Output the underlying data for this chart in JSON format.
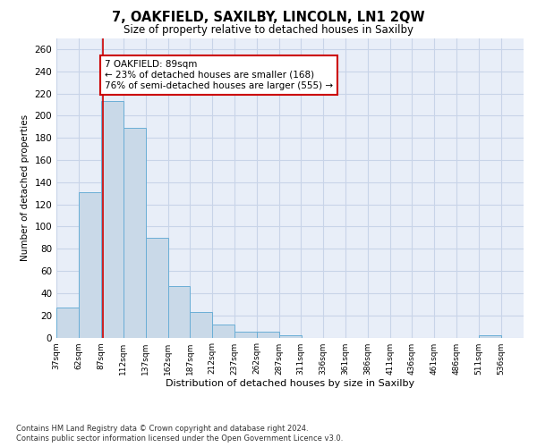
{
  "title": "7, OAKFIELD, SAXILBY, LINCOLN, LN1 2QW",
  "subtitle": "Size of property relative to detached houses in Saxilby",
  "xlabel": "Distribution of detached houses by size in Saxilby",
  "ylabel": "Number of detached properties",
  "bar_color": "#c9d9e8",
  "bar_edge_color": "#6aaed6",
  "grid_color": "#c8d4e8",
  "background_color": "#e8eef8",
  "annotation_text": "7 OAKFIELD: 89sqm\n← 23% of detached houses are smaller (168)\n76% of semi-detached houses are larger (555) →",
  "property_line_x": 89,
  "categories": [
    "37sqm",
    "62sqm",
    "87sqm",
    "112sqm",
    "137sqm",
    "162sqm",
    "187sqm",
    "212sqm",
    "237sqm",
    "262sqm",
    "287sqm",
    "311sqm",
    "336sqm",
    "361sqm",
    "386sqm",
    "411sqm",
    "436sqm",
    "461sqm",
    "486sqm",
    "511sqm",
    "536sqm"
  ],
  "bin_edges": [
    37,
    62,
    87,
    112,
    137,
    162,
    187,
    212,
    237,
    262,
    287,
    311,
    336,
    361,
    386,
    411,
    436,
    461,
    486,
    511,
    536,
    561
  ],
  "values": [
    27,
    131,
    213,
    189,
    90,
    46,
    23,
    12,
    5,
    5,
    2,
    0,
    0,
    0,
    0,
    0,
    0,
    0,
    0,
    2,
    0
  ],
  "ylim": [
    0,
    270
  ],
  "yticks": [
    0,
    20,
    40,
    60,
    80,
    100,
    120,
    140,
    160,
    180,
    200,
    220,
    240,
    260
  ],
  "footer1": "Contains HM Land Registry data © Crown copyright and database right 2024.",
  "footer2": "Contains public sector information licensed under the Open Government Licence v3.0.",
  "red_line_color": "#cc0000",
  "box_color": "#cc0000",
  "title_fontsize": 10.5,
  "subtitle_fontsize": 8.5
}
